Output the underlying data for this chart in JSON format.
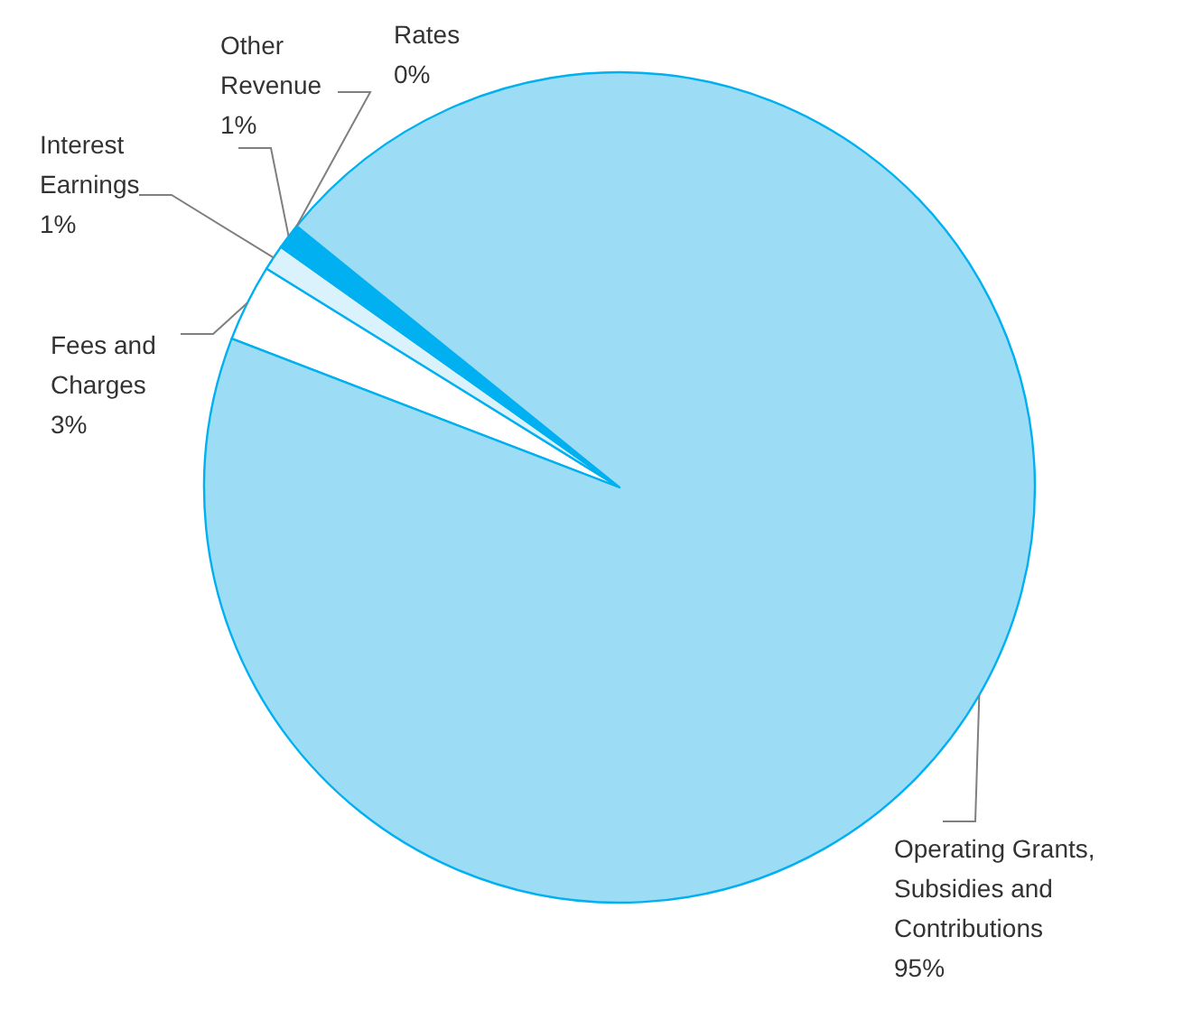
{
  "chart_data": {
    "type": "pie",
    "categories": [
      "Fees and Charges",
      "Interest Earnings",
      "Other Revenue",
      "Rates",
      "Operating Grants, Subsidies and Contributions"
    ],
    "values": [
      3,
      1,
      1,
      0,
      95
    ],
    "value_labels": [
      "3%",
      "1%",
      "1%",
      "0%",
      "95%"
    ],
    "colors": [
      "#ffffff",
      "#d9f2fc",
      "#00b0f0",
      null,
      "#9ddcf5"
    ]
  }
}
